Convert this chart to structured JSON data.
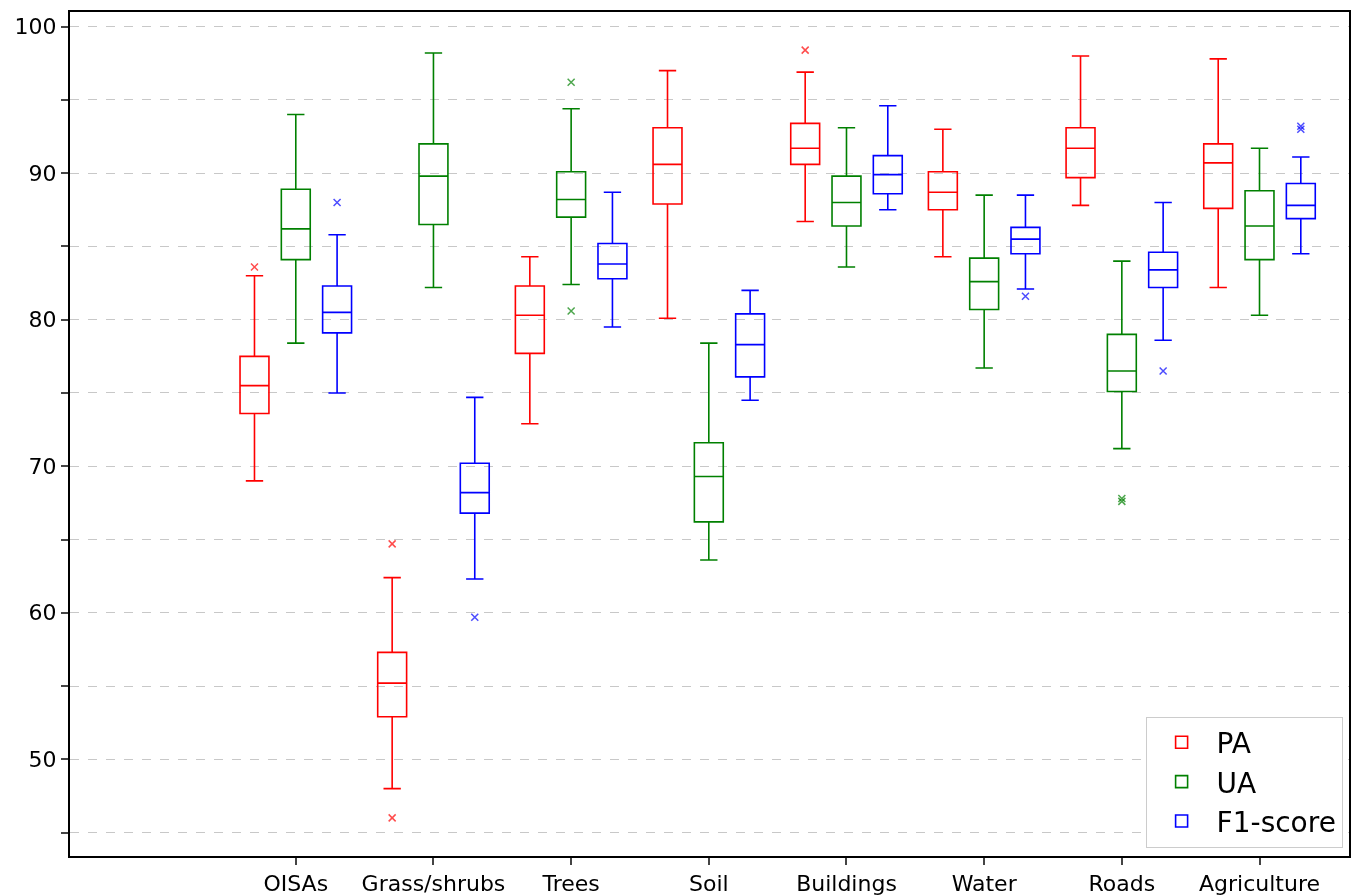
{
  "chart_data": {
    "type": "box",
    "categories": [
      "OISAs",
      "Grass/shrubs",
      "Trees",
      "Soil",
      "Buildings",
      "Water",
      "Roads",
      "Agriculture"
    ],
    "ylim": [
      43.4,
      101
    ],
    "yticks": [
      {
        "value": 45,
        "label": null
      },
      50,
      {
        "value": 55,
        "label": null
      },
      60,
      {
        "value": 65,
        "label": null
      },
      70,
      {
        "value": 75,
        "label": null
      },
      80,
      {
        "value": 85,
        "label": null
      },
      90,
      {
        "value": 95,
        "label": null
      },
      100
    ],
    "grid": "y",
    "legend": "bottom right",
    "marker": "cross",
    "series": [
      {
        "name": "PA",
        "color": "#ff0000",
        "boxes": [
          {
            "low": 69,
            "q1": 73.6,
            "median": 75.5,
            "q3": 77.5,
            "high": 83,
            "outliers": [
              83.6
            ]
          },
          {
            "low": 48,
            "q1": 52.9,
            "median": 55.2,
            "q3": 57.3,
            "high": 62.4,
            "outliers": [
              64.7,
              46
            ]
          },
          {
            "low": 72.9,
            "q1": 77.7,
            "median": 80.3,
            "q3": 82.3,
            "high": 84.3
          },
          {
            "low": 80.1,
            "q1": 87.9,
            "median": 90.6,
            "q3": 93.1,
            "high": 97
          },
          {
            "low": 86.7,
            "q1": 90.6,
            "median": 91.7,
            "q3": 93.4,
            "high": 96.9,
            "outliers": [
              98.4
            ]
          },
          {
            "low": 84.3,
            "q1": 87.5,
            "median": 88.7,
            "q3": 90.1,
            "high": 93
          },
          {
            "low": 87.8,
            "q1": 89.7,
            "median": 91.7,
            "q3": 93.1,
            "high": 98
          },
          {
            "low": 82.2,
            "q1": 87.6,
            "median": 90.7,
            "q3": 92,
            "high": 97.8
          }
        ]
      },
      {
        "name": "UA",
        "color": "#008000",
        "boxes": [
          {
            "low": 78.4,
            "q1": 84.1,
            "median": 86.2,
            "q3": 88.9,
            "high": 94
          },
          {
            "low": 82.2,
            "q1": 86.5,
            "median": 89.8,
            "q3": 92,
            "high": 98.2
          },
          {
            "low": 82.4,
            "q1": 87,
            "median": 88.2,
            "q3": 90.1,
            "high": 94.4,
            "outliers": [
              96.2,
              80.6
            ]
          },
          {
            "low": 63.6,
            "q1": 66.2,
            "median": 69.3,
            "q3": 71.6,
            "high": 78.4
          },
          {
            "low": 83.6,
            "q1": 86.4,
            "median": 88,
            "q3": 89.8,
            "high": 93.1
          },
          {
            "low": 76.7,
            "q1": 80.7,
            "median": 82.6,
            "q3": 84.2,
            "high": 88.5
          },
          {
            "low": 71.2,
            "q1": 75.1,
            "median": 76.5,
            "q3": 79,
            "high": 84,
            "outliers": [
              67.8,
              67.6
            ]
          },
          {
            "low": 80.3,
            "q1": 84.1,
            "median": 86.4,
            "q3": 88.8,
            "high": 91.7
          }
        ]
      },
      {
        "name": "F1-score",
        "color": "#0000ff",
        "boxes": [
          {
            "low": 75,
            "q1": 79.1,
            "median": 80.5,
            "q3": 82.3,
            "high": 85.8,
            "outliers": [
              88
            ]
          },
          {
            "low": 62.3,
            "q1": 66.8,
            "median": 68.2,
            "q3": 70.2,
            "high": 74.7,
            "outliers": [
              59.7
            ]
          },
          {
            "low": 79.5,
            "q1": 82.8,
            "median": 83.8,
            "q3": 85.2,
            "high": 88.7
          },
          {
            "low": 74.5,
            "q1": 76.1,
            "median": 78.3,
            "q3": 80.4,
            "high": 82
          },
          {
            "low": 87.5,
            "q1": 88.6,
            "median": 89.9,
            "q3": 91.2,
            "high": 94.6
          },
          {
            "low": 82.1,
            "q1": 84.5,
            "median": 85.5,
            "q3": 86.3,
            "high": 88.5,
            "outliers": [
              81.6
            ]
          },
          {
            "low": 78.6,
            "q1": 82.2,
            "median": 83.4,
            "q3": 84.6,
            "high": 88,
            "outliers": [
              76.5
            ]
          },
          {
            "low": 84.5,
            "q1": 86.9,
            "median": 87.8,
            "q3": 89.3,
            "high": 91.1,
            "outliers": [
              93.2,
              93
            ]
          }
        ]
      }
    ]
  }
}
